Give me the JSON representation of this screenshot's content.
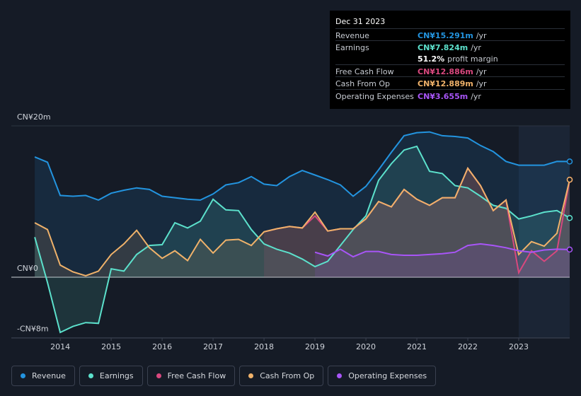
{
  "chart_data": {
    "type": "line",
    "x": [
      2013.5,
      2013.75,
      2014,
      2014.25,
      2014.5,
      2014.75,
      2015,
      2015.25,
      2015.5,
      2015.75,
      2016,
      2016.25,
      2016.5,
      2016.75,
      2017,
      2017.25,
      2017.5,
      2017.75,
      2018,
      2018.25,
      2018.5,
      2018.75,
      2019,
      2019.25,
      2019.5,
      2019.75,
      2020,
      2020.25,
      2020.5,
      2020.75,
      2021,
      2021.25,
      2021.5,
      2021.75,
      2022,
      2022.25,
      2022.5,
      2022.75,
      2023,
      2023.25,
      2023.5,
      2023.75,
      2024
    ],
    "xlim": [
      2013.04,
      2024.0
    ],
    "xticks": [
      2014,
      2015,
      2016,
      2017,
      2018,
      2019,
      2020,
      2021,
      2022,
      2023
    ],
    "ylim": [
      -8,
      20
    ],
    "yticks": [
      {
        "value": 20,
        "label": "CN¥20m"
      },
      {
        "value": 0,
        "label": "CN¥0"
      },
      {
        "value": -8,
        "label": "-CN¥8m"
      }
    ],
    "series": [
      {
        "name": "Revenue",
        "color": "#2394df",
        "values": [
          15.9,
          15.2,
          10.8,
          10.7,
          10.8,
          10.2,
          11.1,
          11.5,
          11.8,
          11.6,
          10.7,
          10.5,
          10.3,
          10.2,
          11.0,
          12.2,
          12.5,
          13.3,
          12.3,
          12.1,
          13.3,
          14.1,
          13.5,
          12.9,
          12.2,
          10.7,
          12.0,
          14.2,
          16.5,
          18.7,
          19.1,
          19.2,
          18.7,
          18.6,
          18.4,
          17.4,
          16.6,
          15.3,
          14.8,
          14.8,
          14.8,
          15.3,
          15.291
        ]
      },
      {
        "name": "Earnings",
        "color": "#5ce1cc",
        "values": [
          5.3,
          -0.7,
          -7.3,
          -6.5,
          -6.0,
          -6.1,
          1.1,
          0.8,
          3.0,
          4.2,
          4.3,
          7.2,
          6.5,
          7.4,
          10.3,
          8.9,
          8.8,
          6.3,
          4.4,
          3.7,
          3.2,
          2.4,
          1.4,
          2.1,
          4.2,
          6.3,
          8.1,
          12.8,
          15.0,
          16.8,
          17.3,
          14.0,
          13.7,
          12.1,
          11.8,
          10.7,
          9.5,
          9.1,
          7.7,
          8.1,
          8.6,
          8.8,
          7.824
        ]
      },
      {
        "name": "Free Cash Flow",
        "color": "#d9487e",
        "values": [
          null,
          null,
          null,
          null,
          null,
          null,
          null,
          null,
          null,
          null,
          null,
          null,
          null,
          null,
          null,
          null,
          null,
          null,
          6.0,
          6.4,
          6.7,
          6.5,
          8.1,
          6.1,
          6.4,
          6.4,
          7.7,
          10.0,
          9.3,
          11.6,
          10.3,
          9.5,
          10.5,
          10.5,
          14.4,
          12.1,
          8.8,
          10.2,
          0.6,
          3.5,
          2.1,
          3.5,
          12.886
        ]
      },
      {
        "name": "Cash From Op",
        "color": "#f0b26a",
        "values": [
          7.2,
          6.3,
          1.6,
          0.7,
          0.2,
          0.8,
          3.0,
          4.4,
          6.2,
          3.9,
          2.5,
          3.5,
          2.2,
          5.0,
          3.2,
          4.9,
          5.0,
          4.2,
          6.0,
          6.4,
          6.7,
          6.5,
          8.6,
          6.1,
          6.4,
          6.4,
          7.7,
          10.0,
          9.3,
          11.6,
          10.3,
          9.5,
          10.5,
          10.5,
          14.4,
          12.1,
          8.8,
          10.2,
          3.0,
          4.7,
          4.1,
          5.8,
          12.889
        ]
      },
      {
        "name": "Operating Expenses",
        "color": "#a855f7",
        "values": [
          null,
          null,
          null,
          null,
          null,
          null,
          null,
          null,
          null,
          null,
          null,
          null,
          null,
          null,
          null,
          null,
          null,
          null,
          null,
          null,
          null,
          null,
          3.3,
          2.8,
          3.7,
          2.7,
          3.4,
          3.4,
          3.0,
          2.9,
          2.9,
          3.0,
          3.1,
          3.3,
          4.2,
          4.4,
          4.2,
          3.9,
          3.5,
          3.3,
          3.6,
          3.7,
          3.655
        ]
      }
    ]
  },
  "tooltip": {
    "date": "Dec 31 2023",
    "rows": [
      {
        "label": "Revenue",
        "value": "CN¥15.291m",
        "unit": "/yr",
        "color": "#2394df"
      },
      {
        "label": "Earnings",
        "value": "CN¥7.824m",
        "unit": "/yr",
        "color": "#5ce1cc"
      },
      {
        "value": "51.2%",
        "unit": "profit margin",
        "color": "#ffffff"
      },
      {
        "label": "Free Cash Flow",
        "value": "CN¥12.886m",
        "unit": "/yr",
        "color": "#d9487e"
      },
      {
        "label": "Cash From Op",
        "value": "CN¥12.889m",
        "unit": "/yr",
        "color": "#f0b26a"
      },
      {
        "label": "Operating Expenses",
        "value": "CN¥3.655m",
        "unit": "/yr",
        "color": "#a855f7"
      }
    ]
  }
}
